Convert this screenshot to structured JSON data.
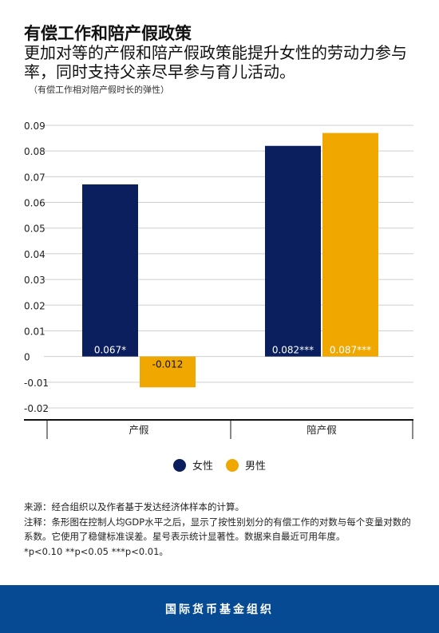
{
  "header": {
    "title": "有偿工作和陪产假政策",
    "subtitle": "更加对等的产假和陪产假政策能提升女性的劳动力参与率，同时支持父亲尽早参与育儿活动。",
    "unit_note": "（有偿工作相对陪产假时长的弹性）"
  },
  "chart_data": {
    "type": "bar",
    "title": "",
    "xlabel": "",
    "ylabel": "",
    "categories": [
      "产假",
      "陪产假"
    ],
    "series": [
      {
        "name": "女性",
        "color": "#0b1f5e",
        "values": [
          0.067,
          0.082
        ],
        "labels": [
          "0.067*",
          "0.082***"
        ]
      },
      {
        "name": "男性",
        "color": "#f0a800",
        "values": [
          -0.012,
          0.087
        ],
        "labels": [
          "-0.012",
          "0.087***"
        ]
      }
    ],
    "ylim": [
      -0.02,
      0.09
    ],
    "yticks": [
      "0.09",
      "0.08",
      "0.07",
      "0.06",
      "0.05",
      "0.04",
      "0.03",
      "0.02",
      "0.01",
      "0",
      "-0.01",
      "-0.02"
    ],
    "grid": true,
    "legend_position": "bottom"
  },
  "legend": {
    "women_label": "女性",
    "men_label": "男性",
    "women_color": "#0b1f5e",
    "men_color": "#f0a800"
  },
  "footnotes": {
    "source": "来源：经合组织以及作者基于发达经济体样本的计算。",
    "note": "注释：条形图在控制人均GDP水平之后，显示了按性别划分的有偿工作的对数与每个变量对数的系数。它使用了稳健标准误差。星号表示统计显著性。数据来自最近可用年度。",
    "significance": "*p<0.10 **p<0.05 ***p<0.01。"
  },
  "footer": {
    "org_name": "国际货币基金组织",
    "background_color": "#064a93"
  }
}
